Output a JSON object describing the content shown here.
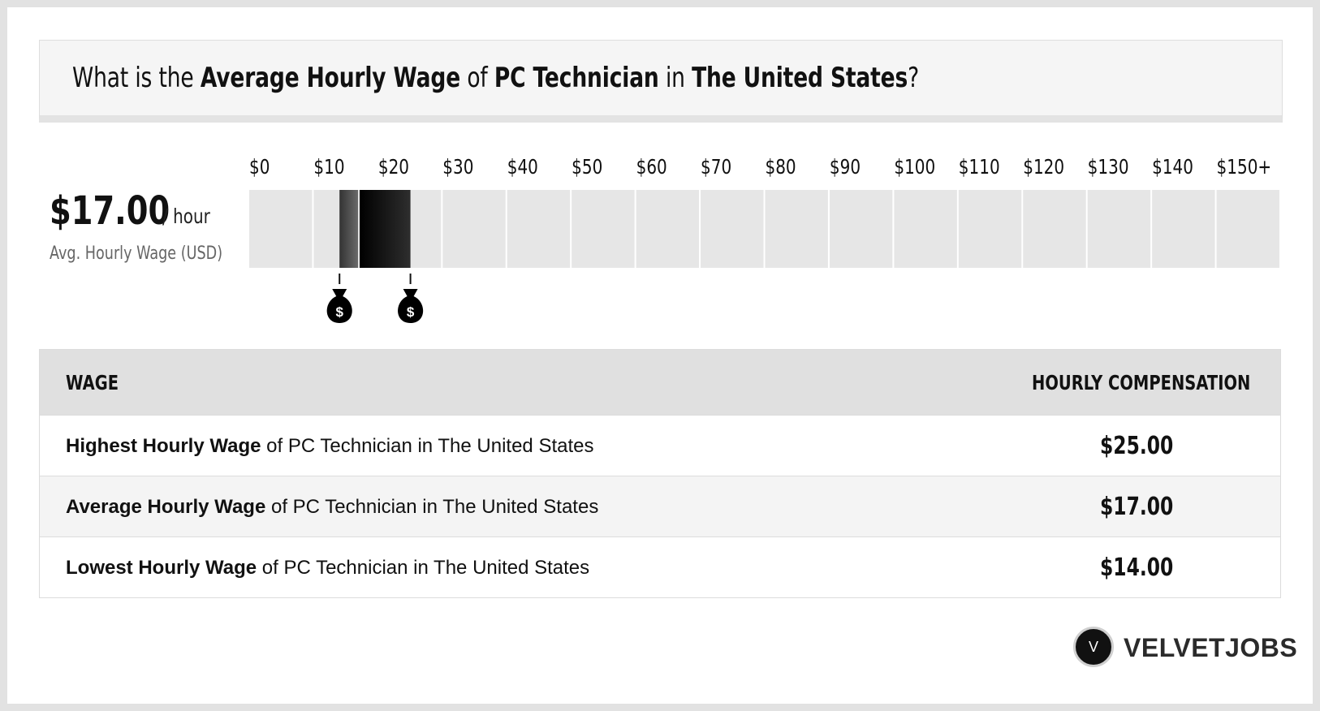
{
  "header": {
    "prefix": "What is the ",
    "metric": "Average Hourly Wage",
    "of": " of ",
    "job": "PC Technician",
    "in": " in ",
    "location": "The United States",
    "suffix": "?"
  },
  "summary": {
    "value": "$17.00",
    "unit": "/ hour",
    "label": "Avg. Hourly Wage (USD)"
  },
  "chart_data": {
    "type": "bar",
    "title": "",
    "xlabel": "",
    "ylabel": "",
    "categories": [
      "$0",
      "$10",
      "$20",
      "$30",
      "$40",
      "$50",
      "$60",
      "$70",
      "$80",
      "$90",
      "$100",
      "$110",
      "$120",
      "$130",
      "$140",
      "$150+"
    ],
    "xlim": [
      0,
      150
    ],
    "range": {
      "low": 14.0,
      "average": 17.0,
      "high": 25.0
    },
    "markers": [
      14.0,
      25.0
    ],
    "marker_icon": "money-bag-icon",
    "colors": {
      "track": "#e6e6e6",
      "low_segment": "#4a4a4a",
      "high_segment": "#111111"
    }
  },
  "table": {
    "headers": {
      "wage": "WAGE",
      "comp": "HOURLY COMPENSATION"
    },
    "rows": [
      {
        "bold": "Highest Hourly Wage",
        "rest": " of PC Technician in The United States",
        "value": "$25.00"
      },
      {
        "bold": "Average Hourly Wage",
        "rest": " of PC Technician in The United States",
        "value": "$17.00"
      },
      {
        "bold": "Lowest Hourly Wage",
        "rest": " of PC Technician in The United States",
        "value": "$14.00"
      }
    ]
  },
  "brand": {
    "logo_letter": "V",
    "name": "VELVETJOBS"
  }
}
